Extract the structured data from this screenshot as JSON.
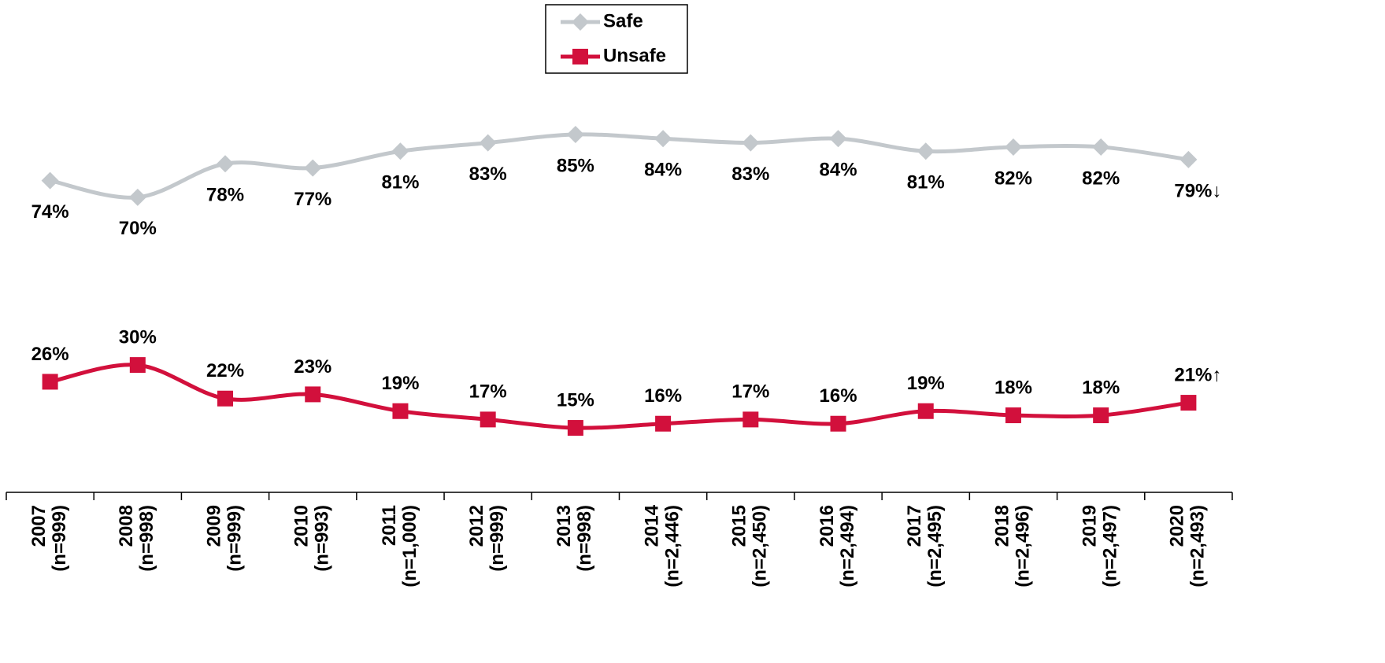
{
  "chart_data": {
    "type": "line",
    "categories": [
      "2007",
      "2008",
      "2009",
      "2010",
      "2011",
      "2012",
      "2013",
      "2014",
      "2015",
      "2016",
      "2017",
      "2018",
      "2019",
      "2020"
    ],
    "sample_sizes": [
      "(n=999)",
      "(n=998)",
      "(n=999)",
      "(n=993)",
      "(n=1,000)",
      "(n=999)",
      "(n=998)",
      "(n=2,446)",
      "(n=2,450)",
      "(n=2,494)",
      "(n=2,495)",
      "(n=2,496)",
      "(n=2,497)",
      "(n=2,493)"
    ],
    "series": [
      {
        "name": "Safe",
        "color": "#c3c8cc",
        "marker": "diamond",
        "values": [
          74,
          70,
          78,
          77,
          81,
          83,
          85,
          84,
          83,
          84,
          81,
          82,
          82,
          79
        ],
        "value_labels": [
          "74%",
          "70%",
          "78%",
          "77%",
          "81%",
          "83%",
          "85%",
          "84%",
          "83%",
          "84%",
          "81%",
          "82%",
          "82%",
          "79%↓"
        ]
      },
      {
        "name": "Unsafe",
        "color": "#d2103c",
        "marker": "square",
        "values": [
          26,
          30,
          22,
          23,
          19,
          17,
          15,
          16,
          17,
          16,
          19,
          18,
          18,
          21
        ],
        "value_labels": [
          "26%",
          "30%",
          "22%",
          "23%",
          "19%",
          "17%",
          "15%",
          "16%",
          "17%",
          "16%",
          "19%",
          "18%",
          "18%",
          "21%↑"
        ]
      }
    ],
    "ylim": [
      0,
      100
    ]
  }
}
